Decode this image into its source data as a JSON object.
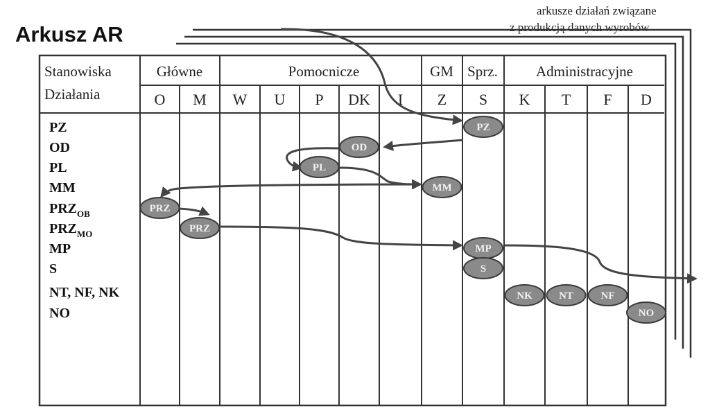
{
  "title": "Arkusz AR",
  "note": {
    "line1": "arkusze działań związane",
    "line2": "z produkcją danych wyrobów"
  },
  "header": {
    "stanowiska": "Stanowiska",
    "dzialania": "Działania"
  },
  "groups": [
    "Główne",
    "Pomocnicze",
    "GM",
    "Sprz.",
    "Administracyjne"
  ],
  "columns": [
    "O",
    "M",
    "W",
    "U",
    "P",
    "DK",
    "I",
    "Z",
    "S",
    "K",
    "T",
    "F",
    "D"
  ],
  "activities": [
    {
      "main": "PZ",
      "sub": ""
    },
    {
      "main": "OD",
      "sub": ""
    },
    {
      "main": "PL",
      "sub": ""
    },
    {
      "main": "MM",
      "sub": ""
    },
    {
      "main": "PRZ",
      "sub": "OB"
    },
    {
      "main": "PRZ",
      "sub": "MO"
    },
    {
      "main": "MP",
      "sub": ""
    },
    {
      "main": "S",
      "sub": ""
    },
    {
      "main": "NT, NF, NK",
      "sub": ""
    },
    {
      "main": "NO",
      "sub": ""
    }
  ],
  "nodes": [
    {
      "label": "PZ",
      "column": "S",
      "row": 0
    },
    {
      "label": "OD",
      "column": "DK",
      "row": 1
    },
    {
      "label": "PL",
      "column": "P",
      "row": 2
    },
    {
      "label": "MM",
      "column": "Z",
      "row": 3
    },
    {
      "label": "PRZ",
      "column": "O",
      "row": 4
    },
    {
      "label": "PRZ",
      "column": "M",
      "row": 5
    },
    {
      "label": "MP",
      "column": "S",
      "row": 6
    },
    {
      "label": "S",
      "column": "S",
      "row": 7
    },
    {
      "label": "NK",
      "column": "K",
      "row": 8
    },
    {
      "label": "NT",
      "column": "T",
      "row": 8
    },
    {
      "label": "NF",
      "column": "F",
      "row": 8
    },
    {
      "label": "NO",
      "column": "D",
      "row": 9
    }
  ]
}
